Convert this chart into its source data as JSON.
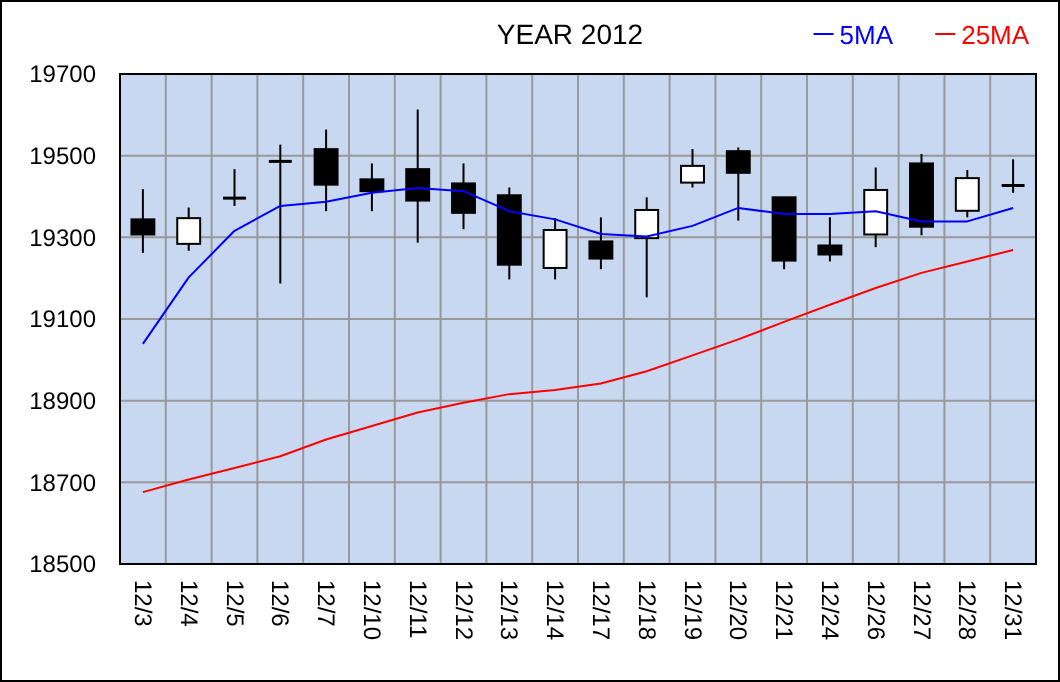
{
  "chart_data": {
    "type": "candlestick",
    "title": "YEAR 2012",
    "categories": [
      "12/3",
      "12/4",
      "12/5",
      "12/6",
      "12/7",
      "12/10",
      "12/11",
      "12/12",
      "12/13",
      "12/14",
      "12/17",
      "12/18",
      "12/19",
      "12/20",
      "12/21",
      "12/24",
      "12/26",
      "12/27",
      "12/28",
      "12/31"
    ],
    "ohlc": [
      [
        19344,
        19418,
        19262,
        19307
      ],
      [
        19284,
        19373,
        19267,
        19347
      ],
      [
        19396,
        19467,
        19377,
        19396
      ],
      [
        19486,
        19527,
        19187,
        19480
      ],
      [
        19516,
        19564,
        19364,
        19429
      ],
      [
        19442,
        19481,
        19364,
        19413
      ],
      [
        19467,
        19613,
        19287,
        19390
      ],
      [
        19432,
        19481,
        19320,
        19360
      ],
      [
        19403,
        19422,
        19197,
        19233
      ],
      [
        19225,
        19347,
        19197,
        19318
      ],
      [
        19290,
        19349,
        19222,
        19248
      ],
      [
        19298,
        19398,
        19153,
        19367
      ],
      [
        19434,
        19516,
        19422,
        19475
      ],
      [
        19511,
        19520,
        19341,
        19458
      ],
      [
        19398,
        19398,
        19222,
        19243
      ],
      [
        19280,
        19349,
        19241,
        19258
      ],
      [
        19307,
        19471,
        19276,
        19416
      ],
      [
        19481,
        19504,
        19305,
        19326
      ],
      [
        19365,
        19465,
        19349,
        19445
      ],
      [
        19427,
        19491,
        19409,
        19427
      ]
    ],
    "series": [
      {
        "name": "5MA",
        "type": "line",
        "color": "#0000ff",
        "values": [
          19039,
          19202,
          19316,
          19377,
          19387,
          19409,
          19421,
          19413,
          19364,
          19344,
          19308,
          19302,
          19328,
          19372,
          19357,
          19357,
          19364,
          19339,
          19339,
          19372
        ]
      },
      {
        "name": "25MA",
        "type": "line",
        "color": "#ff0000",
        "values": [
          18676,
          18707,
          18735,
          18764,
          18805,
          18838,
          18871,
          18895,
          18916,
          18926,
          18942,
          18972,
          19011,
          19050,
          19093,
          19135,
          19176,
          19213,
          19241,
          19269
        ]
      }
    ],
    "ylim": [
      18500,
      19700
    ],
    "yticks": [
      18500,
      18700,
      18900,
      19100,
      19300,
      19500,
      19700
    ],
    "grid": true,
    "legend": "top right"
  }
}
